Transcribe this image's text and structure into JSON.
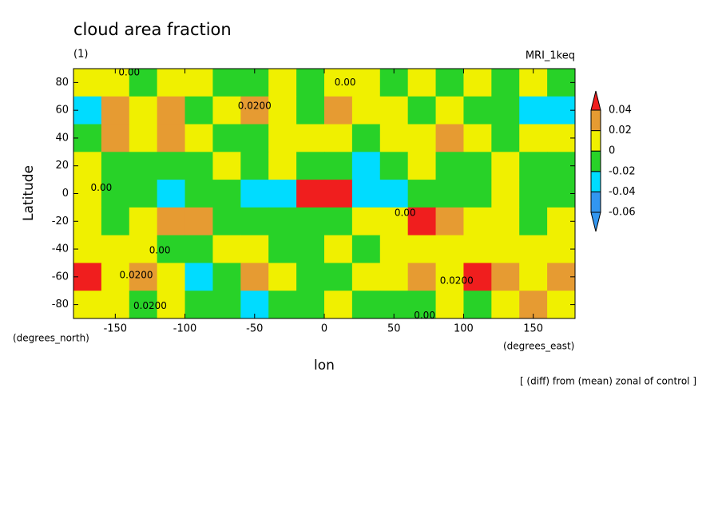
{
  "chart_data": {
    "type": "contour",
    "title": "cloud area fraction",
    "subtitle": "(1)",
    "model": "MRI_1keq",
    "ylabel": "Latitude",
    "xlabel": "lon",
    "yunits": "(degrees_north)",
    "xunits": "(degrees_east)",
    "note": "[ (diff) from (mean) zonal of control ]",
    "xlim": [
      -180,
      180
    ],
    "ylim": [
      -90,
      90
    ],
    "xticks": [
      -150,
      -100,
      -50,
      0,
      50,
      100,
      150
    ],
    "yticks": [
      -80,
      -60,
      -40,
      -20,
      0,
      20,
      40,
      60,
      80
    ],
    "x": [
      -170,
      -150,
      -130,
      -110,
      -90,
      -70,
      -50,
      -30,
      -10,
      10,
      30,
      50,
      70,
      90,
      110,
      130,
      150,
      170
    ],
    "y": [
      80,
      60,
      40,
      20,
      0,
      -20,
      -40,
      -60,
      -80
    ],
    "values": [
      [
        0.01,
        0.005,
        -0.005,
        0.01,
        0.01,
        -0.01,
        -0.005,
        0.01,
        -0.01,
        0.005,
        0.01,
        -0.01,
        0.01,
        -0.005,
        0.005,
        -0.01,
        0.01,
        -0.01
      ],
      [
        -0.03,
        0.025,
        0.01,
        0.02,
        -0.01,
        0.01,
        0.025,
        0.01,
        -0.01,
        0.025,
        0.01,
        0.01,
        -0.01,
        0.005,
        -0.01,
        -0.01,
        -0.03,
        -0.025
      ],
      [
        -0.01,
        0.03,
        0.01,
        0.025,
        0.01,
        -0.01,
        -0.005,
        0.01,
        0.005,
        0.01,
        -0.01,
        0.01,
        0.015,
        0.025,
        0.01,
        -0.01,
        0.01,
        0.005
      ],
      [
        0.01,
        -0.01,
        -0.01,
        -0.01,
        -0.005,
        0.01,
        -0.01,
        0.005,
        -0.01,
        -0.01,
        -0.03,
        -0.01,
        0.01,
        -0.01,
        -0.005,
        0.01,
        -0.01,
        -0.01
      ],
      [
        0.01,
        -0.01,
        -0.01,
        -0.025,
        -0.01,
        -0.01,
        -0.03,
        -0.03,
        0.045,
        0.04,
        -0.03,
        -0.025,
        -0.01,
        -0.005,
        -0.01,
        0.01,
        -0.01,
        -0.005
      ],
      [
        0.01,
        -0.005,
        0.01,
        0.025,
        0.02,
        -0.01,
        -0.01,
        -0.005,
        -0.01,
        -0.005,
        0.01,
        0.01,
        0.045,
        0.025,
        0.01,
        0.01,
        -0.01,
        0.01
      ],
      [
        0.01,
        0.01,
        0.005,
        -0.01,
        -0.01,
        0.01,
        0.01,
        -0.01,
        -0.01,
        0.01,
        -0.005,
        0.01,
        0.01,
        0.01,
        0.015,
        0.01,
        0.01,
        0.005
      ],
      [
        0.04,
        0.01,
        0.035,
        0.01,
        -0.03,
        -0.01,
        0.025,
        0.01,
        -0.01,
        -0.01,
        0.01,
        0.01,
        0.025,
        0.01,
        0.04,
        0.025,
        0.01,
        0.02
      ],
      [
        0.01,
        0.005,
        -0.02,
        0.01,
        -0.01,
        -0.01,
        -0.025,
        -0.01,
        -0.005,
        0.01,
        -0.01,
        -0.005,
        -0.01,
        0.01,
        -0.01,
        0.01,
        0.025,
        0.01
      ]
    ],
    "levels": [
      -0.06,
      -0.04,
      -0.02,
      0,
      0.02,
      0.04
    ],
    "colors": [
      "#3296f0",
      "#3296f0",
      "#00dcff",
      "#28d228",
      "#f0f000",
      "#e69b32",
      "#f01e1e"
    ],
    "contour_labels": [
      {
        "text": "0.00",
        "lon": -140,
        "lat": 87
      },
      {
        "text": "0.0200",
        "lon": -50,
        "lat": 63
      },
      {
        "text": "0.00",
        "lon": 15,
        "lat": 80
      },
      {
        "text": "0.00",
        "lon": -160,
        "lat": 4
      },
      {
        "text": "0.00",
        "lon": 58,
        "lat": -14
      },
      {
        "text": "0.00",
        "lon": -118,
        "lat": -41
      },
      {
        "text": "0.0200",
        "lon": -135,
        "lat": -59
      },
      {
        "text": "0.0200",
        "lon": 95,
        "lat": -63
      },
      {
        "text": "0.0200",
        "lon": -125,
        "lat": -81
      },
      {
        "text": "0.00",
        "lon": 72,
        "lat": -88
      }
    ]
  }
}
